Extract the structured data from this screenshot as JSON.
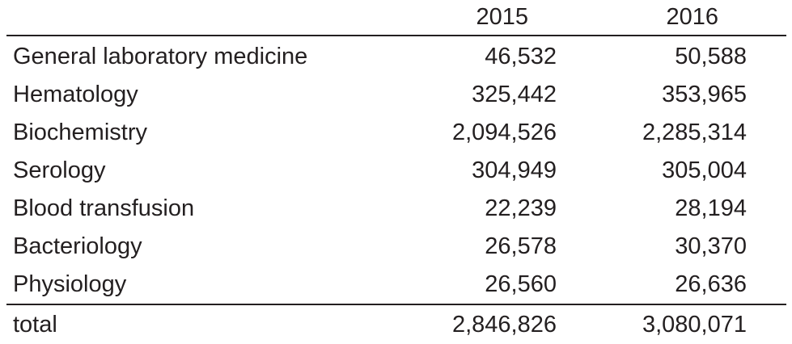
{
  "table": {
    "header": {
      "col_label": "",
      "year_2015": "2015",
      "year_2016": "2016"
    },
    "rows": [
      {
        "label": "General laboratory medicine",
        "v2015": "46,532",
        "v2016": "50,588"
      },
      {
        "label": "Hematology",
        "v2015": "325,442",
        "v2016": "353,965"
      },
      {
        "label": "Biochemistry",
        "v2015": "2,094,526",
        "v2016": "2,285,314"
      },
      {
        "label": "Serology",
        "v2015": "304,949",
        "v2016": "305,004"
      },
      {
        "label": "Blood transfusion",
        "v2015": "22,239",
        "v2016": "28,194"
      },
      {
        "label": "Bacteriology",
        "v2015": "26,578",
        "v2016": "30,370"
      },
      {
        "label": "Physiology",
        "v2015": "26,560",
        "v2016": "26,636"
      }
    ],
    "total": {
      "label": "total",
      "v2015": "2,846,826",
      "v2016": "3,080,071"
    }
  }
}
